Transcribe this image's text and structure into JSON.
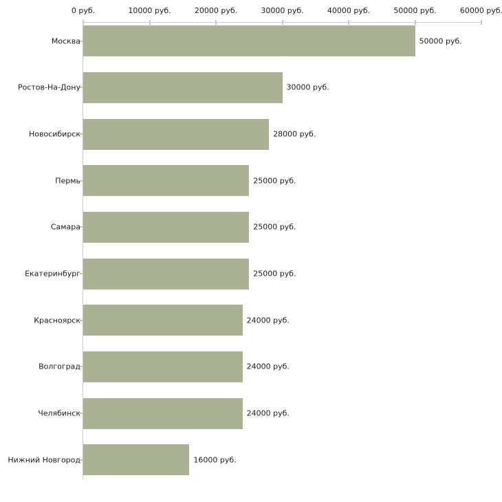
{
  "chart_data": {
    "type": "bar",
    "orientation": "horizontal",
    "title": "",
    "xlabel": "",
    "ylabel": "",
    "unit": "руб.",
    "categories": [
      "Москва",
      "Ростов-На-Дону",
      "Новосибирск",
      "Пермь",
      "Самара",
      "Екатеринбург",
      "Красноярск",
      "Волгоград",
      "Челябинск",
      "Нижний Новгород"
    ],
    "values": [
      50000,
      30000,
      28000,
      25000,
      25000,
      25000,
      24000,
      24000,
      24000,
      16000
    ],
    "value_labels": [
      "50000 руб.",
      "30000 руб.",
      "28000 руб.",
      "25000 руб.",
      "25000 руб.",
      "25000 руб.",
      "24000 руб.",
      "24000 руб.",
      "24000 руб.",
      "16000 руб."
    ],
    "xlim": [
      0,
      60000
    ],
    "xticks": [
      0,
      10000,
      20000,
      30000,
      40000,
      50000,
      60000
    ],
    "xtick_labels": [
      "0 руб.",
      "10000 руб.",
      "20000 руб.",
      "30000 руб.",
      "40000 руб.",
      "50000 руб.",
      "60000 руб."
    ],
    "grid": false,
    "legend": false,
    "colors": {
      "bar": "#abb293",
      "axis_line": "#c9c9c9",
      "tick_mark": "#d2c79a",
      "text": "#1c1c1c",
      "background": "#ffffff"
    }
  }
}
